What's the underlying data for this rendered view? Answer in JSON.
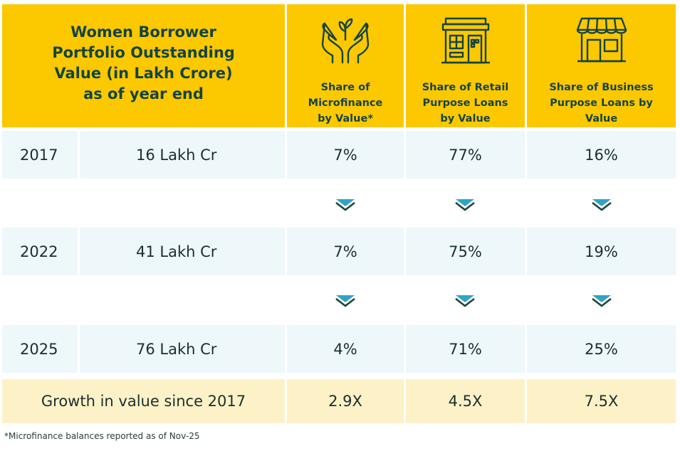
{
  "chart_data": {
    "type": "table",
    "title": "Women Borrower Portfolio Outstanding Value (in Lakh Crore) as of year end",
    "columns": [
      "Share of Microfinance by Value*",
      "Share of Retail Purpose Loans by Value",
      "Share of Business Purpose Loans by Value"
    ],
    "rows": [
      {
        "year": "2017",
        "value": "16 Lakh Cr",
        "shares": [
          "7%",
          "77%",
          "16%"
        ]
      },
      {
        "year": "2022",
        "value": "41 Lakh Cr",
        "shares": [
          "7%",
          "75%",
          "19%"
        ]
      },
      {
        "year": "2025",
        "value": "76 Lakh Cr",
        "shares": [
          "4%",
          "71%",
          "25%"
        ]
      }
    ],
    "growth": {
      "label": "Growth in value since 2017",
      "values": [
        "2.9X",
        "4.5X",
        "7.5X"
      ]
    }
  },
  "header": {
    "title": "Women Borrower\nPortfolio Outstanding\nValue (in Lakh Crore)\nas of year end",
    "col1": "Share of\nMicrofinance\nby Value*",
    "col2": "Share of Retail\nPurpose Loans\nby Value",
    "col3": "Share of Business\nPurpose Loans by\nValue"
  },
  "footnote": "*Microfinance balances reported as of Nov-25",
  "colors": {
    "header_bg": "#fcc800",
    "row_bg": "#eef7fa",
    "growth_bg": "#fdf1c7",
    "arrow": "#2fa3c8",
    "text": "#15443f"
  }
}
